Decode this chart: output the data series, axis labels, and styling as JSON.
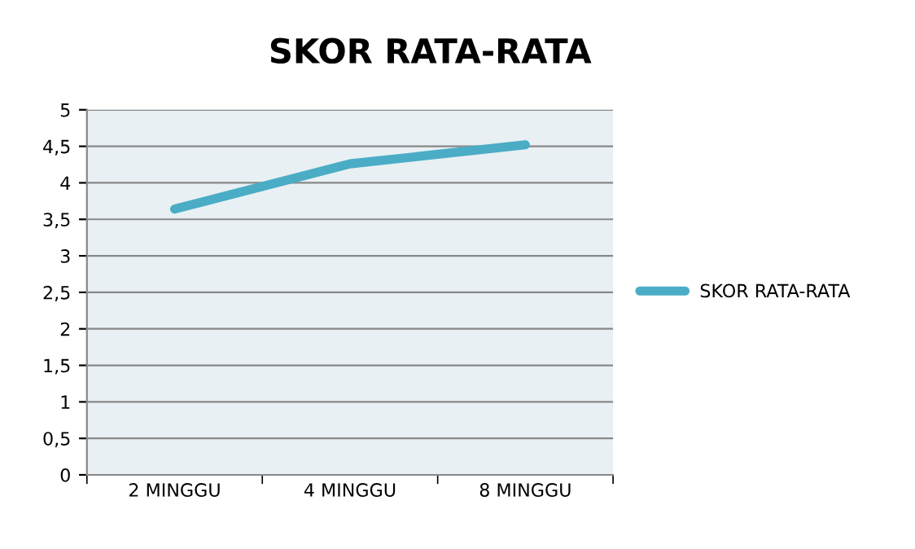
{
  "chart_data": {
    "type": "line",
    "title": "SKOR RATA-RATA",
    "categories": [
      "2 MINGGU",
      "4 MINGGU",
      "8 MINGGU"
    ],
    "series": [
      {
        "name": "SKOR RATA-RATA",
        "color": "#4bacc6",
        "values": [
          3.64,
          4.26,
          4.52
        ]
      }
    ],
    "ylim": [
      0,
      5
    ],
    "yticks": [
      0,
      {
        "value": 0.5,
        "label": "0,5"
      },
      1,
      {
        "value": 1.5,
        "label": "1,5"
      },
      2,
      {
        "value": 2.5,
        "label": "2,5"
      },
      3,
      {
        "value": 3.5,
        "label": "3,5"
      },
      4,
      {
        "value": 4.5,
        "label": "4,5"
      },
      5
    ],
    "grid": "y",
    "legend": "right",
    "marker": "none",
    "line_style": "solid"
  }
}
